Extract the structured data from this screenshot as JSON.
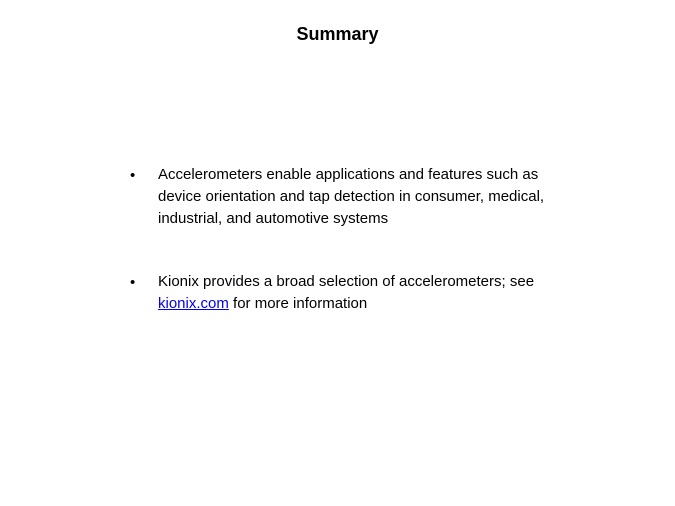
{
  "title": "Summary",
  "bullets": [
    {
      "text": "Accelerometers enable applications and features such as device orientation and tap detection in consumer, medical, industrial, and automotive systems"
    },
    {
      "text_before": "Kionix provides a broad selection of accelerometers; see ",
      "link_text": "kionix.com",
      "text_after": " for more information"
    }
  ],
  "colors": {
    "background": "#ffffff",
    "text": "#000000",
    "link": "#0000ee"
  },
  "typography": {
    "title_fontsize": 18,
    "body_fontsize": 15,
    "font_family": "Verdana"
  }
}
